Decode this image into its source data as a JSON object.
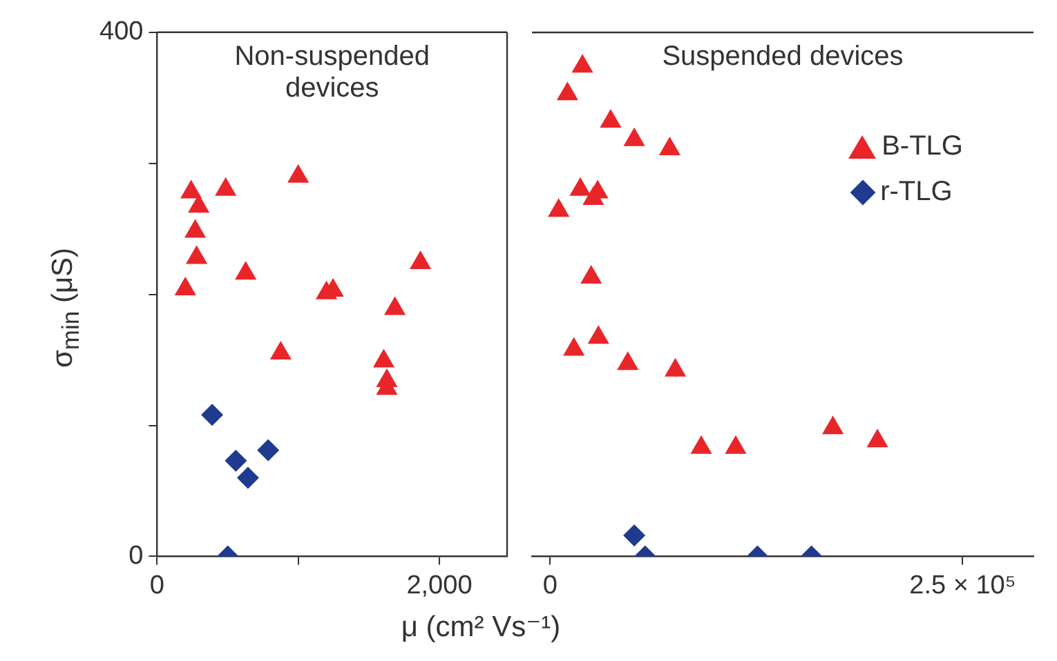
{
  "chart_data": [
    {
      "type": "scatter",
      "ylabel": "σ$_{min}$ (μS)",
      "xlabel": "μ (cm² Vs⁻¹)",
      "annotations": [
        "Non-suspended devices"
      ],
      "xlim": [
        0,
        2480
      ],
      "xticks": [
        0,
        {
          "value": 1000,
          "label": null
        },
        {
          "value": 2000,
          "label": "2,000"
        }
      ],
      "ylim": [
        0,
        400
      ],
      "yticks": [
        0,
        {
          "value": 100,
          "label": null
        },
        {
          "value": 200,
          "label": null
        },
        {
          "value": 300,
          "label": null
        },
        400
      ],
      "series": [
        {
          "color": "#e8262a",
          "marker": "triangle",
          "x": [
            241,
            486,
            295,
            270,
            280,
            200,
            628,
            1000,
            1200,
            1247,
            1866,
            1685,
            876,
            1606,
            1628,
            1628
          ],
          "values": [
            278,
            280,
            267,
            248,
            228,
            204,
            216,
            290,
            201,
            203,
            224,
            189,
            155,
            149,
            134,
            128
          ]
        },
        {
          "color": "#1f3a8f",
          "marker": "diamond",
          "x": [
            390,
            558,
            644,
            787,
            501
          ],
          "values": [
            108,
            73,
            60,
            81,
            0
          ]
        }
      ]
    },
    {
      "type": "scatter",
      "annotations": [
        "Suspended devices"
      ],
      "xlim": [
        -11000,
        293000
      ],
      "xticks": [
        0,
        {
          "value": 250000,
          "label": "2.5 × 10⁵"
        }
      ],
      "ylim": [
        0,
        400
      ],
      "tick_labels": "x",
      "legend": "top right",
      "series": [
        {
          "name": "B-TLG",
          "color": "#e8262a",
          "marker": "triangle",
          "x": [
            19600,
            10500,
            36700,
            51000,
            72500,
            18300,
            28800,
            26200,
            5200,
            24900,
            14400,
            29300,
            47100,
            75900,
            91600,
            112500,
            171400,
            198400
          ],
          "values": [
            374,
            353,
            332,
            318,
            311,
            280,
            278,
            273,
            264,
            213,
            158,
            167,
            147,
            142,
            83,
            83,
            98,
            88
          ]
        },
        {
          "name": "r-TLG",
          "color": "#1f3a8f",
          "marker": "diamond",
          "x": [
            51000,
            57600,
            125700,
            158400
          ],
          "values": [
            16,
            0,
            0,
            0
          ]
        }
      ]
    }
  ]
}
